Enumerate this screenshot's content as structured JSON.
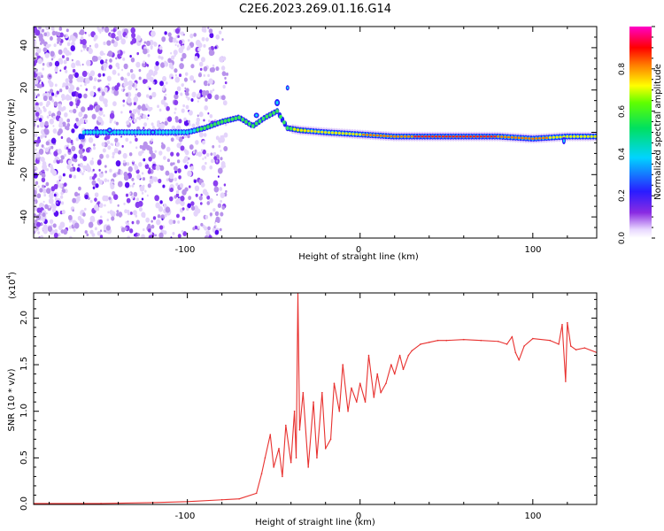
{
  "title": "C2E6.2023.269.01.16.G14",
  "chart_data": [
    {
      "type": "heatmap",
      "xlabel": "Height of straight line (km)",
      "ylabel": "Frequency (Hz)",
      "xlim": [
        -189,
        137
      ],
      "ylim": [
        -50,
        50
      ],
      "x_ticks": [
        "-100",
        "0",
        "100"
      ],
      "y_ticks": [
        "-40",
        "-20",
        "0",
        "20",
        "40"
      ],
      "colorbar": {
        "label": "Normalized spectral amplitude",
        "range": [
          0,
          1
        ],
        "ticks": [
          "0.0",
          "0.2",
          "0.4",
          "0.6",
          "0.8"
        ],
        "colormap": "rainbow (white to violet to blue to cyan to green to yellow to red to magenta)"
      },
      "trace": {
        "description": "Doppler frequency ridge versus height",
        "x": [
          -160,
          -140,
          -120,
          -100,
          -90,
          -80,
          -70,
          -62,
          -55,
          -48,
          -42,
          -35,
          -20,
          0,
          20,
          50,
          80,
          100,
          120,
          137
        ],
        "y": [
          0,
          0,
          0,
          0,
          2,
          5,
          7,
          3,
          7,
          10,
          2,
          1,
          0,
          -1,
          -2,
          -2,
          -2,
          -3,
          -2,
          -2
        ]
      }
    },
    {
      "type": "line",
      "series_color": "#e8312f",
      "xlabel": "Height of straight line (km)",
      "ylabel": "SNR (10 * v/v)",
      "y_multiplier": "(x10",
      "y_multiplier_exp": "4",
      "y_multiplier_close": ")",
      "xlim": [
        -189,
        137
      ],
      "ylim": [
        0,
        2.27
      ],
      "x_ticks": [
        "-100",
        "0",
        "100"
      ],
      "y_ticks": [
        "0.0",
        "0.5",
        "1.0",
        "1.5",
        "2.0"
      ],
      "x": [
        -189,
        -150,
        -120,
        -100,
        -80,
        -70,
        -60,
        -57,
        -55,
        -52,
        -50,
        -47,
        -45,
        -43,
        -40,
        -38,
        -37,
        -36,
        -35,
        -33,
        -30,
        -27,
        -25,
        -22,
        -20,
        -17,
        -15,
        -12,
        -10,
        -7,
        -5,
        -2,
        0,
        3,
        5,
        8,
        10,
        12,
        15,
        18,
        20,
        23,
        25,
        28,
        30,
        35,
        40,
        45,
        50,
        60,
        70,
        80,
        85,
        88,
        90,
        92,
        95,
        100,
        110,
        115,
        117,
        119,
        120,
        122,
        125,
        130,
        137
      ],
      "y": [
        0.01,
        0.01,
        0.02,
        0.03,
        0.05,
        0.06,
        0.12,
        0.33,
        0.5,
        0.75,
        0.4,
        0.6,
        0.3,
        0.85,
        0.45,
        1.0,
        0.5,
        2.27,
        0.8,
        1.2,
        0.4,
        1.1,
        0.5,
        1.2,
        0.6,
        0.7,
        1.3,
        1.0,
        1.5,
        1.0,
        1.25,
        1.1,
        1.3,
        1.1,
        1.6,
        1.15,
        1.4,
        1.2,
        1.3,
        1.5,
        1.4,
        1.6,
        1.45,
        1.6,
        1.65,
        1.72,
        1.74,
        1.76,
        1.76,
        1.77,
        1.76,
        1.75,
        1.72,
        1.8,
        1.63,
        1.55,
        1.7,
        1.78,
        1.76,
        1.72,
        1.93,
        1.32,
        1.95,
        1.7,
        1.66,
        1.68,
        1.63
      ]
    }
  ]
}
